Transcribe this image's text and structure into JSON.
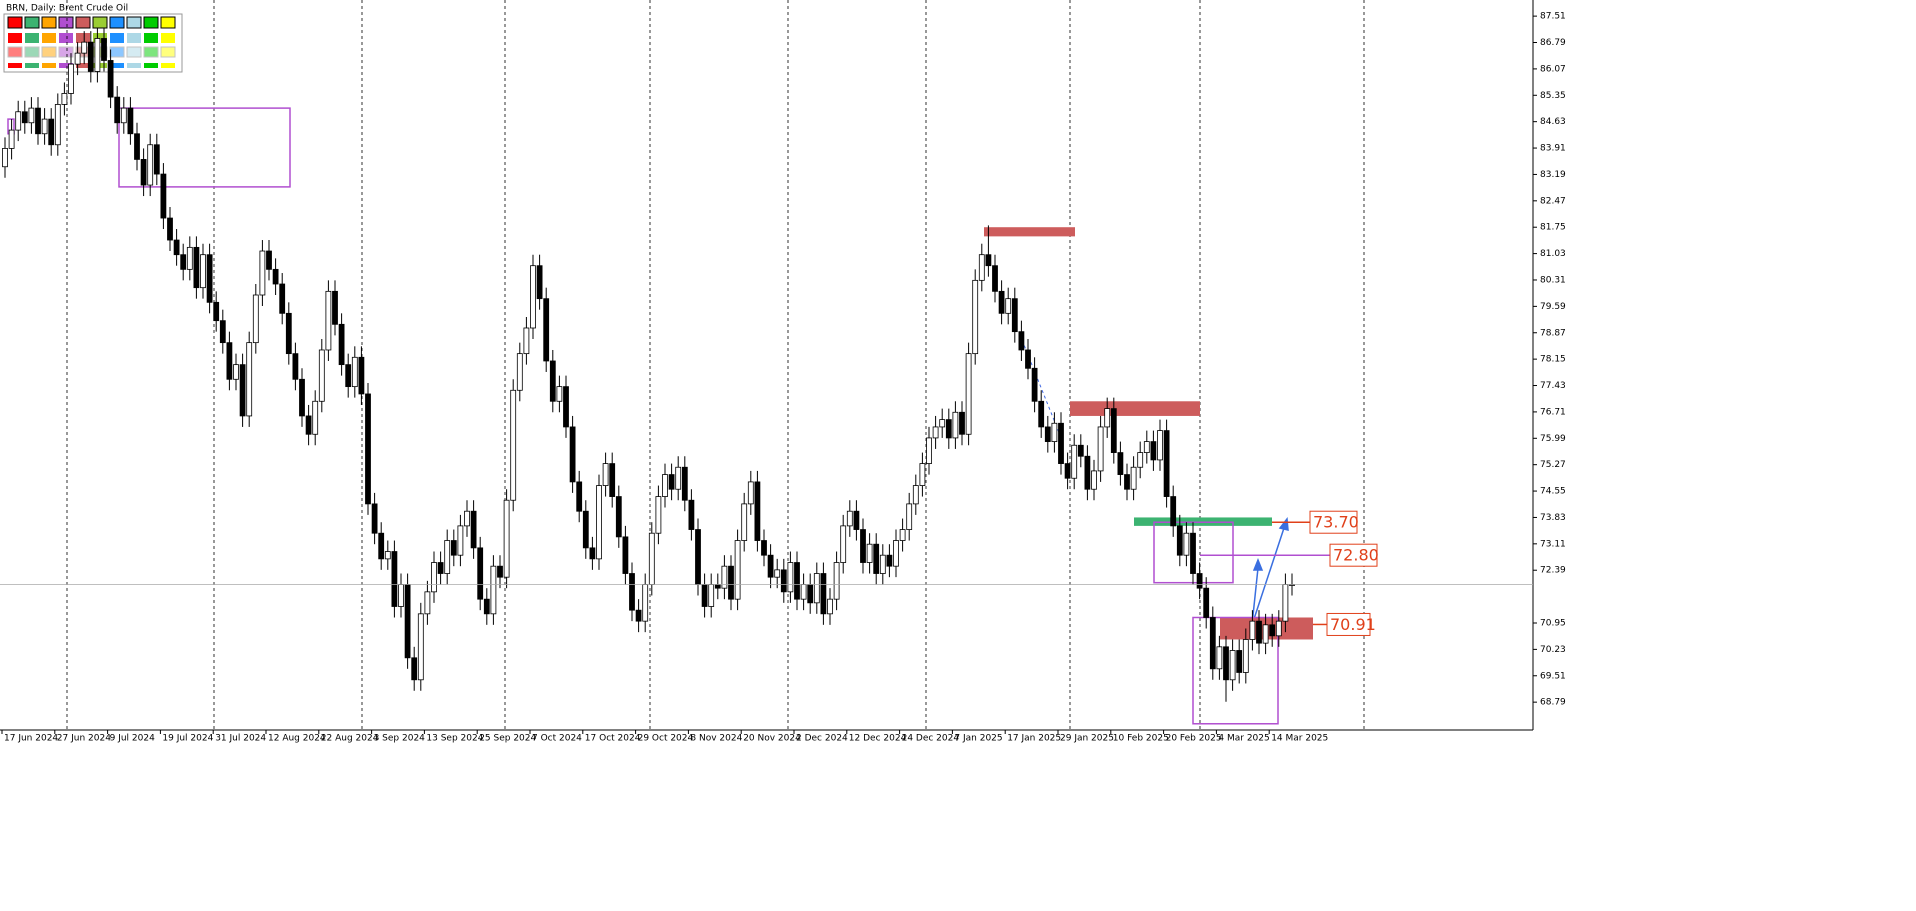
{
  "chart_data": {
    "type": "candlestick",
    "title": "BRN, Daily:  Brent Crude Oil",
    "ylim": [
      68.03,
      87.95
    ],
    "yticks": [
      87.51,
      86.79,
      86.07,
      85.35,
      84.63,
      83.91,
      83.19,
      82.47,
      81.75,
      81.03,
      80.31,
      79.59,
      78.87,
      78.15,
      77.43,
      76.71,
      75.99,
      75.27,
      74.55,
      73.83,
      73.11,
      72.39,
      70.95,
      70.23,
      69.51,
      68.79
    ],
    "x_labels": [
      "17 Jun 2024",
      "27 Jun 2024",
      "9 Jul 2024",
      "19 Jul 2024",
      "31 Jul 2024",
      "12 Aug 2024",
      "22 Aug 2024",
      "3 Sep 2024",
      "13 Sep 2024",
      "25 Sep 2024",
      "7 Oct 2024",
      "17 Oct 2024",
      "29 Oct 2024",
      "8 Nov 2024",
      "20 Nov 2024",
      "2 Dec 2024",
      "12 Dec 2024",
      "24 Dec 2024",
      "7 Jan 2025",
      "17 Jan 2025",
      "29 Jan 2025",
      "10 Feb 2025",
      "20 Feb 2025",
      "4 Mar 2025",
      "14 Mar 2025"
    ],
    "bull_color": "#ffffff",
    "bear_color": "#000000",
    "ohlc": [
      [
        83.4,
        84.2,
        83.1,
        83.9
      ],
      [
        83.9,
        84.7,
        83.6,
        84.4
      ],
      [
        84.4,
        85.2,
        84.1,
        84.9
      ],
      [
        84.9,
        85.2,
        84.3,
        84.6
      ],
      [
        84.6,
        85.3,
        84.3,
        85.0
      ],
      [
        85.0,
        85.3,
        84.0,
        84.3
      ],
      [
        84.3,
        85.0,
        84.0,
        84.7
      ],
      [
        84.7,
        85.0,
        83.7,
        84.0
      ],
      [
        84.0,
        85.4,
        83.7,
        85.1
      ],
      [
        85.1,
        85.7,
        84.8,
        85.4
      ],
      [
        85.4,
        86.5,
        85.1,
        86.2
      ],
      [
        86.2,
        86.8,
        85.9,
        86.5
      ],
      [
        86.5,
        87.1,
        86.2,
        86.8
      ],
      [
        86.8,
        87.1,
        85.7,
        86.0
      ],
      [
        86.0,
        87.2,
        85.7,
        86.9
      ],
      [
        86.9,
        87.2,
        86.0,
        86.3
      ],
      [
        86.3,
        86.6,
        85.0,
        85.3
      ],
      [
        85.3,
        85.6,
        84.3,
        84.6
      ],
      [
        84.6,
        85.3,
        84.3,
        85.0
      ],
      [
        85.0,
        85.3,
        84.0,
        84.3
      ],
      [
        84.3,
        84.6,
        83.3,
        83.6
      ],
      [
        83.6,
        83.9,
        82.6,
        82.9
      ],
      [
        82.9,
        84.3,
        82.6,
        84.0
      ],
      [
        84.0,
        84.3,
        82.9,
        83.2
      ],
      [
        83.2,
        83.5,
        81.7,
        82.0
      ],
      [
        82.0,
        82.3,
        81.1,
        81.4
      ],
      [
        81.4,
        81.7,
        80.7,
        81.0
      ],
      [
        81.0,
        81.3,
        80.3,
        80.6
      ],
      [
        80.6,
        81.5,
        80.3,
        81.2
      ],
      [
        81.2,
        81.5,
        79.8,
        80.1
      ],
      [
        80.1,
        81.3,
        79.8,
        81.0
      ],
      [
        81.0,
        81.3,
        79.4,
        79.7
      ],
      [
        79.7,
        80.0,
        78.9,
        79.2
      ],
      [
        79.2,
        79.5,
        78.3,
        78.6
      ],
      [
        78.6,
        78.9,
        77.3,
        77.6
      ],
      [
        77.6,
        78.3,
        77.3,
        78.0
      ],
      [
        78.0,
        78.3,
        76.3,
        76.6
      ],
      [
        76.6,
        78.9,
        76.3,
        78.6
      ],
      [
        78.6,
        80.2,
        78.3,
        79.9
      ],
      [
        79.9,
        81.4,
        79.6,
        81.1
      ],
      [
        81.1,
        81.4,
        80.3,
        80.6
      ],
      [
        80.6,
        80.9,
        79.9,
        80.2
      ],
      [
        80.2,
        80.5,
        79.1,
        79.4
      ],
      [
        79.4,
        79.7,
        78.0,
        78.3
      ],
      [
        78.3,
        78.6,
        77.3,
        77.6
      ],
      [
        77.6,
        77.9,
        76.3,
        76.6
      ],
      [
        76.6,
        76.9,
        75.8,
        76.1
      ],
      [
        76.1,
        77.3,
        75.8,
        77.0
      ],
      [
        77.0,
        78.7,
        76.7,
        78.4
      ],
      [
        78.4,
        80.3,
        78.1,
        80.0
      ],
      [
        80.0,
        80.3,
        78.8,
        79.1
      ],
      [
        79.1,
        79.4,
        77.7,
        78.0
      ],
      [
        78.0,
        78.3,
        77.1,
        77.4
      ],
      [
        77.4,
        78.5,
        77.1,
        78.2
      ],
      [
        78.2,
        78.5,
        76.9,
        77.2
      ],
      [
        77.2,
        77.5,
        73.9,
        74.2
      ],
      [
        74.2,
        74.5,
        73.1,
        73.4
      ],
      [
        73.4,
        73.7,
        72.4,
        72.7
      ],
      [
        72.7,
        73.2,
        72.4,
        72.9
      ],
      [
        72.9,
        73.2,
        71.1,
        71.4
      ],
      [
        71.4,
        72.3,
        71.1,
        72.0
      ],
      [
        72.0,
        72.3,
        69.7,
        70.0
      ],
      [
        70.0,
        70.3,
        69.1,
        69.4
      ],
      [
        69.4,
        71.5,
        69.1,
        71.2
      ],
      [
        71.2,
        72.1,
        70.9,
        71.8
      ],
      [
        71.8,
        72.9,
        71.5,
        72.6
      ],
      [
        72.6,
        72.9,
        72.0,
        72.3
      ],
      [
        72.3,
        73.5,
        72.0,
        73.2
      ],
      [
        73.2,
        73.5,
        72.5,
        72.8
      ],
      [
        72.8,
        73.9,
        72.5,
        73.6
      ],
      [
        73.6,
        74.3,
        73.3,
        74.0
      ],
      [
        74.0,
        74.3,
        72.7,
        73.0
      ],
      [
        73.0,
        73.3,
        71.3,
        71.6
      ],
      [
        71.6,
        71.9,
        70.9,
        71.2
      ],
      [
        71.2,
        72.8,
        70.9,
        72.5
      ],
      [
        72.5,
        72.8,
        71.9,
        72.2
      ],
      [
        72.2,
        74.6,
        71.9,
        74.3
      ],
      [
        74.3,
        77.6,
        74.0,
        77.3
      ],
      [
        77.3,
        78.6,
        77.0,
        78.3
      ],
      [
        78.3,
        79.3,
        78.0,
        79.0
      ],
      [
        79.0,
        81.0,
        78.7,
        80.7
      ],
      [
        80.7,
        81.0,
        79.5,
        79.8
      ],
      [
        79.8,
        80.1,
        77.8,
        78.1
      ],
      [
        78.1,
        78.4,
        76.7,
        77.0
      ],
      [
        77.0,
        77.7,
        76.7,
        77.4
      ],
      [
        77.4,
        77.7,
        76.0,
        76.3
      ],
      [
        76.3,
        76.6,
        74.5,
        74.8
      ],
      [
        74.8,
        75.1,
        73.7,
        74.0
      ],
      [
        74.0,
        74.3,
        72.7,
        73.0
      ],
      [
        73.0,
        73.3,
        72.4,
        72.7
      ],
      [
        72.7,
        75.0,
        72.4,
        74.7
      ],
      [
        74.7,
        75.6,
        74.4,
        75.3
      ],
      [
        75.3,
        75.6,
        74.1,
        74.4
      ],
      [
        74.4,
        74.7,
        73.0,
        73.3
      ],
      [
        73.3,
        73.6,
        72.0,
        72.3
      ],
      [
        72.3,
        72.6,
        71.0,
        71.3
      ],
      [
        71.3,
        71.6,
        70.7,
        71.0
      ],
      [
        71.0,
        72.3,
        70.7,
        72.0
      ],
      [
        72.0,
        73.7,
        71.7,
        73.4
      ],
      [
        73.4,
        74.7,
        73.1,
        74.4
      ],
      [
        74.4,
        75.3,
        74.1,
        75.0
      ],
      [
        75.0,
        75.3,
        74.3,
        74.6
      ],
      [
        74.6,
        75.5,
        74.3,
        75.2
      ],
      [
        75.2,
        75.5,
        74.0,
        74.3
      ],
      [
        74.3,
        74.6,
        73.2,
        73.5
      ],
      [
        73.5,
        73.8,
        71.7,
        72.0
      ],
      [
        72.0,
        72.3,
        71.1,
        71.4
      ],
      [
        71.4,
        72.3,
        71.1,
        72.0
      ],
      [
        72.0,
        72.3,
        71.6,
        71.9
      ],
      [
        71.9,
        72.8,
        71.6,
        72.5
      ],
      [
        72.5,
        72.8,
        71.3,
        71.6
      ],
      [
        71.6,
        73.5,
        71.3,
        73.2
      ],
      [
        73.2,
        74.5,
        72.9,
        74.2
      ],
      [
        74.2,
        75.1,
        73.9,
        74.8
      ],
      [
        74.8,
        75.1,
        72.9,
        73.2
      ],
      [
        73.2,
        73.5,
        72.5,
        72.8
      ],
      [
        72.8,
        73.1,
        71.9,
        72.2
      ],
      [
        72.2,
        72.7,
        71.9,
        72.4
      ],
      [
        72.4,
        72.7,
        71.5,
        71.8
      ],
      [
        71.8,
        72.9,
        71.5,
        72.6
      ],
      [
        72.6,
        72.9,
        71.3,
        71.6
      ],
      [
        71.6,
        72.3,
        71.3,
        72.0
      ],
      [
        72.0,
        72.3,
        71.2,
        71.5
      ],
      [
        71.5,
        72.6,
        71.2,
        72.3
      ],
      [
        72.3,
        72.6,
        70.9,
        71.2
      ],
      [
        71.2,
        71.9,
        70.9,
        71.6
      ],
      [
        71.6,
        72.9,
        71.3,
        72.6
      ],
      [
        72.6,
        73.9,
        72.3,
        73.6
      ],
      [
        73.6,
        74.3,
        73.3,
        74.0
      ],
      [
        74.0,
        74.3,
        73.2,
        73.5
      ],
      [
        73.5,
        73.8,
        72.3,
        72.6
      ],
      [
        72.6,
        73.4,
        72.3,
        73.1
      ],
      [
        73.1,
        73.4,
        72.0,
        72.3
      ],
      [
        72.3,
        73.1,
        72.0,
        72.8
      ],
      [
        72.8,
        73.1,
        72.2,
        72.5
      ],
      [
        72.5,
        73.5,
        72.2,
        73.2
      ],
      [
        73.2,
        73.8,
        72.9,
        73.5
      ],
      [
        73.5,
        74.5,
        73.2,
        74.2
      ],
      [
        74.2,
        75.0,
        73.9,
        74.7
      ],
      [
        74.7,
        75.6,
        74.4,
        75.3
      ],
      [
        75.3,
        76.3,
        75.0,
        76.0
      ],
      [
        76.0,
        76.6,
        75.7,
        76.3
      ],
      [
        76.3,
        76.8,
        76.0,
        76.5
      ],
      [
        76.5,
        76.8,
        75.7,
        76.0
      ],
      [
        76.0,
        77.0,
        75.7,
        76.7
      ],
      [
        76.7,
        77.0,
        75.8,
        76.1
      ],
      [
        76.1,
        78.6,
        75.8,
        78.3
      ],
      [
        78.3,
        80.6,
        78.0,
        80.3
      ],
      [
        80.3,
        81.3,
        80.0,
        81.0
      ],
      [
        81.0,
        81.8,
        80.4,
        80.7
      ],
      [
        80.7,
        81.0,
        79.7,
        80.0
      ],
      [
        80.0,
        80.3,
        79.1,
        79.4
      ],
      [
        79.4,
        80.1,
        79.1,
        79.8
      ],
      [
        79.8,
        80.1,
        78.6,
        78.9
      ],
      [
        78.9,
        79.2,
        78.1,
        78.4
      ],
      [
        78.4,
        78.7,
        77.6,
        77.9
      ],
      [
        77.9,
        78.2,
        76.7,
        77.0
      ],
      [
        77.0,
        77.3,
        76.0,
        76.3
      ],
      [
        76.3,
        76.6,
        75.6,
        75.9
      ],
      [
        75.9,
        76.7,
        75.6,
        76.4
      ],
      [
        76.4,
        76.7,
        75.0,
        75.3
      ],
      [
        75.3,
        75.6,
        74.6,
        74.9
      ],
      [
        74.9,
        76.1,
        74.6,
        75.8
      ],
      [
        75.8,
        76.1,
        75.2,
        75.5
      ],
      [
        75.5,
        75.8,
        74.3,
        74.6
      ],
      [
        74.6,
        75.4,
        74.3,
        75.1
      ],
      [
        75.1,
        76.6,
        74.8,
        76.3
      ],
      [
        76.3,
        77.1,
        76.0,
        76.8
      ],
      [
        76.8,
        77.1,
        75.3,
        75.6
      ],
      [
        75.6,
        75.9,
        74.7,
        75.0
      ],
      [
        75.0,
        75.3,
        74.3,
        74.6
      ],
      [
        74.6,
        75.5,
        74.3,
        75.2
      ],
      [
        75.2,
        75.9,
        74.9,
        75.6
      ],
      [
        75.6,
        76.2,
        75.3,
        75.9
      ],
      [
        75.9,
        76.2,
        75.1,
        75.4
      ],
      [
        75.4,
        76.5,
        75.1,
        76.2
      ],
      [
        76.2,
        76.5,
        74.1,
        74.4
      ],
      [
        74.4,
        74.7,
        73.3,
        73.6
      ],
      [
        73.6,
        73.9,
        72.5,
        72.8
      ],
      [
        72.8,
        73.7,
        72.5,
        73.4
      ],
      [
        73.4,
        73.7,
        72.0,
        72.3
      ],
      [
        72.3,
        72.6,
        71.6,
        71.9
      ],
      [
        71.9,
        72.2,
        70.8,
        71.1
      ],
      [
        71.1,
        71.4,
        69.4,
        69.7
      ],
      [
        69.7,
        70.6,
        69.4,
        70.3
      ],
      [
        70.3,
        70.6,
        68.8,
        69.4
      ],
      [
        69.4,
        70.5,
        69.1,
        70.2
      ],
      [
        70.2,
        70.5,
        69.3,
        69.6
      ],
      [
        69.6,
        70.8,
        69.3,
        70.5
      ],
      [
        70.5,
        71.3,
        70.2,
        71.0
      ],
      [
        71.0,
        71.3,
        70.1,
        70.4
      ],
      [
        70.4,
        71.2,
        70.1,
        70.9
      ],
      [
        70.9,
        71.2,
        70.3,
        70.6
      ],
      [
        70.6,
        71.3,
        70.3,
        71.0
      ],
      [
        71.0,
        72.3,
        70.7,
        72.0
      ],
      [
        72.0,
        72.3,
        71.7,
        72.0
      ]
    ],
    "zones": [
      {
        "low": 81.5,
        "high": 81.75,
        "color": "#cd5c5c"
      },
      {
        "low": 76.6,
        "high": 77.0,
        "color": "#cd5c5c"
      },
      {
        "low": 73.6,
        "high": 73.83,
        "color": "#3cb371"
      },
      {
        "low": 70.5,
        "high": 71.1,
        "color": "#cd5c5c"
      }
    ],
    "boxes": [
      {
        "low": 82.85,
        "high": 85.0,
        "color": "#b04fd0"
      },
      {
        "low": 72.05,
        "high": 73.7,
        "color": "#b04fd0"
      },
      {
        "low": 68.2,
        "high": 71.1,
        "color": "#b04fd0"
      },
      {
        "low": 84.3,
        "high": 84.7,
        "color": "#b04fd0"
      }
    ],
    "levels": [
      {
        "value": 73.7,
        "label": "73.70",
        "color": "#e0401a"
      },
      {
        "value": 72.8,
        "label": "72.80",
        "color": "#e0401a"
      },
      {
        "value": 70.91,
        "label": "70.91",
        "color": "#e0401a"
      }
    ]
  }
}
